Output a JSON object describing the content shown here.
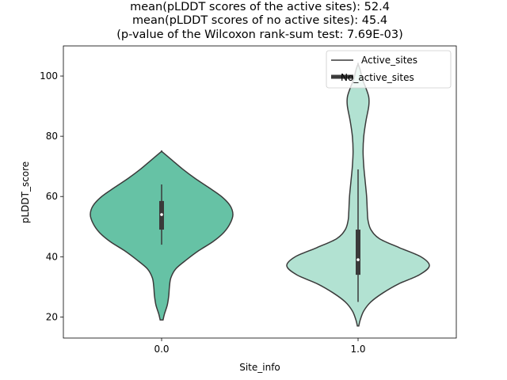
{
  "chart_data": {
    "type": "violin",
    "title_lines": [
      "mean(pLDDT scores of the active sites): 52.4",
      "mean(pLDDT scores of no active sites): 45.4",
      "(p-value of the Wilcoxon rank-sum test: 7.69E-03)"
    ],
    "xlabel": "Site_info",
    "ylabel": "pLDDT_score",
    "categories": [
      "0.0",
      "1.0"
    ],
    "ylim": [
      13,
      110
    ],
    "yticks": [
      20,
      40,
      60,
      80,
      100
    ],
    "legend": {
      "position": "upper right",
      "entries": [
        "Active_sites",
        "No_active_sites"
      ]
    },
    "series": [
      {
        "category": "0.0",
        "color": "#66c2a5",
        "density_profile": [
          [
            19,
            0.02
          ],
          [
            21,
            0.04
          ],
          [
            24,
            0.08
          ],
          [
            27,
            0.1
          ],
          [
            30,
            0.11
          ],
          [
            33,
            0.13
          ],
          [
            36,
            0.2
          ],
          [
            39,
            0.35
          ],
          [
            42,
            0.52
          ],
          [
            45,
            0.72
          ],
          [
            48,
            0.87
          ],
          [
            51,
            0.96
          ],
          [
            54,
            1.0
          ],
          [
            57,
            0.96
          ],
          [
            60,
            0.84
          ],
          [
            63,
            0.66
          ],
          [
            66,
            0.47
          ],
          [
            69,
            0.3
          ],
          [
            72,
            0.15
          ],
          [
            74,
            0.05
          ],
          [
            75,
            0.0
          ]
        ],
        "box": {
          "q1": 49,
          "median": 54,
          "q3": 58.5,
          "whisker_low": 44,
          "whisker_high": 64
        }
      },
      {
        "category": "1.0",
        "color": "#b2e2d2",
        "density_profile": [
          [
            17,
            0.01
          ],
          [
            19,
            0.03
          ],
          [
            22,
            0.08
          ],
          [
            25,
            0.18
          ],
          [
            28,
            0.35
          ],
          [
            31,
            0.57
          ],
          [
            34,
            0.86
          ],
          [
            37,
            1.0
          ],
          [
            40,
            0.88
          ],
          [
            43,
            0.58
          ],
          [
            46,
            0.3
          ],
          [
            49,
            0.18
          ],
          [
            52,
            0.14
          ],
          [
            55,
            0.13
          ],
          [
            60,
            0.12
          ],
          [
            65,
            0.1
          ],
          [
            70,
            0.08
          ],
          [
            75,
            0.07
          ],
          [
            80,
            0.08
          ],
          [
            85,
            0.11
          ],
          [
            90,
            0.15
          ],
          [
            93,
            0.15
          ],
          [
            96,
            0.11
          ],
          [
            99,
            0.06
          ],
          [
            102,
            0.03
          ],
          [
            104,
            0.0
          ]
        ],
        "box": {
          "q1": 34,
          "median": 39,
          "q3": 49,
          "whisker_low": 25,
          "whisker_high": 69
        }
      }
    ]
  }
}
